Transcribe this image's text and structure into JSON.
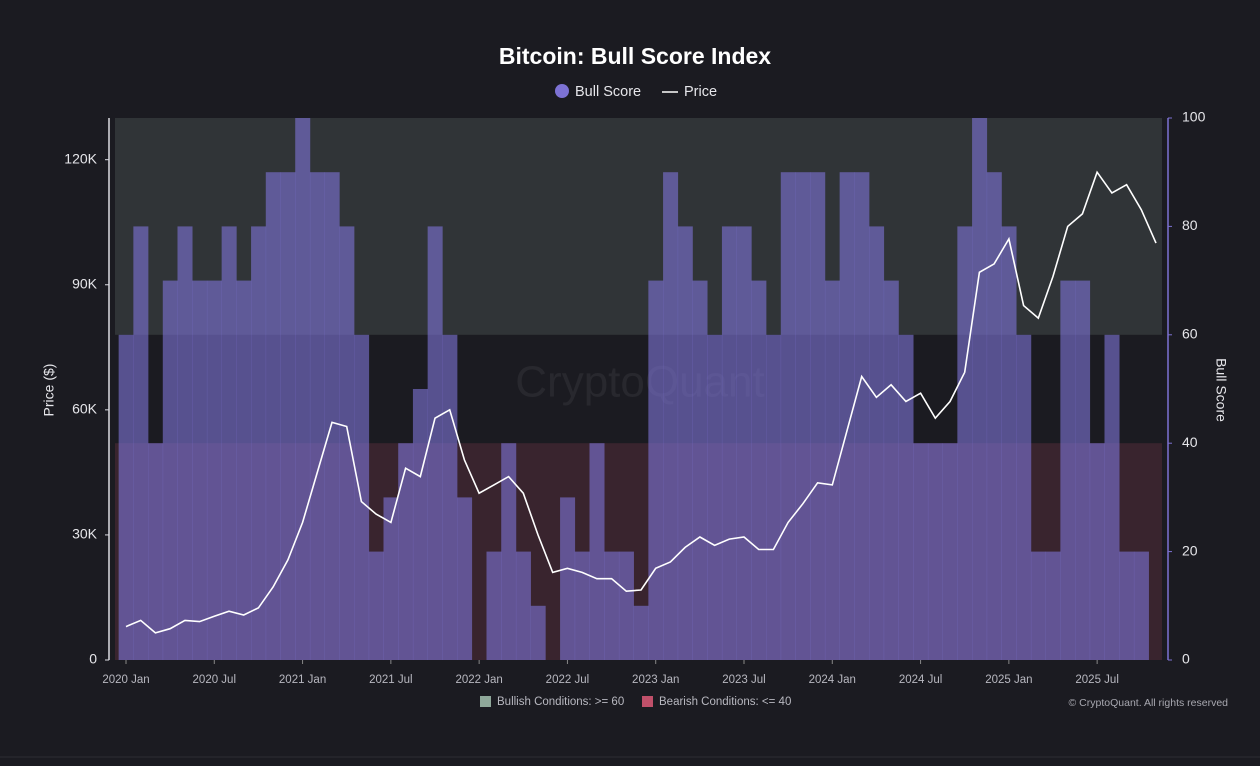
{
  "chart_data": {
    "type": "area-line",
    "title": "Bitcoin: Bull Score Index",
    "ylabel": "Price ($)",
    "y2label": "Bull Score",
    "watermark": "CryptoQuant",
    "credit": "© CryptoQuant. All rights reserved",
    "x": [
      "2020-01",
      "2020-02",
      "2020-03",
      "2020-04",
      "2020-05",
      "2020-06",
      "2020-07",
      "2020-08",
      "2020-09",
      "2020-10",
      "2020-11",
      "2020-12",
      "2021-01",
      "2021-02",
      "2021-03",
      "2021-04",
      "2021-05",
      "2021-06",
      "2021-07",
      "2021-08",
      "2021-09",
      "2021-10",
      "2021-11",
      "2021-12",
      "2022-01",
      "2022-02",
      "2022-03",
      "2022-04",
      "2022-05",
      "2022-06",
      "2022-07",
      "2022-08",
      "2022-09",
      "2022-10",
      "2022-11",
      "2022-12",
      "2023-01",
      "2023-02",
      "2023-03",
      "2023-04",
      "2023-05",
      "2023-06",
      "2023-07",
      "2023-08",
      "2023-09",
      "2023-10",
      "2023-11",
      "2023-12",
      "2024-01",
      "2024-02",
      "2024-03",
      "2024-04",
      "2024-05",
      "2024-06",
      "2024-07",
      "2024-08",
      "2024-09",
      "2024-10",
      "2024-11",
      "2024-12",
      "2025-01",
      "2025-02",
      "2025-03",
      "2025-04",
      "2025-05",
      "2025-06",
      "2025-07",
      "2025-08",
      "2025-09",
      "2025-10",
      "2025-11"
    ],
    "xticks": [
      {
        "value": "2020-01",
        "label": "2020 Jan"
      },
      {
        "value": "2020-07",
        "label": "2020 Jul"
      },
      {
        "value": "2021-01",
        "label": "2021 Jan"
      },
      {
        "value": "2021-07",
        "label": "2021 Jul"
      },
      {
        "value": "2022-01",
        "label": "2022 Jan"
      },
      {
        "value": "2022-07",
        "label": "2022 Jul"
      },
      {
        "value": "2023-01",
        "label": "2023 Jan"
      },
      {
        "value": "2023-07",
        "label": "2023 Jul"
      },
      {
        "value": "2024-01",
        "label": "2024 Jan"
      },
      {
        "value": "2024-07",
        "label": "2024 Jul"
      },
      {
        "value": "2025-01",
        "label": "2025 Jan"
      },
      {
        "value": "2025-07",
        "label": "2025 Jul"
      }
    ],
    "ylim": [
      0,
      130000
    ],
    "yticks": [
      0,
      {
        "value": 30000,
        "label": "30K"
      },
      {
        "value": 60000,
        "label": "60K"
      },
      {
        "value": 90000,
        "label": "90K"
      },
      {
        "value": 120000,
        "label": "120K"
      }
    ],
    "y2lim": [
      0,
      100
    ],
    "y2ticks": [
      0,
      20,
      40,
      60,
      80,
      100
    ],
    "bands": [
      {
        "label": "Bullish Conditions: >= 60",
        "from": 60,
        "to": 100,
        "color": "#8fa89a"
      },
      {
        "label": "Bearish Conditions: <= 40",
        "from": 0,
        "to": 40,
        "color": "#c0506a"
      }
    ],
    "series": [
      {
        "name": "Bull Score",
        "color": "#7d72d4",
        "axis": "y2",
        "values": [
          60,
          80,
          40,
          70,
          80,
          70,
          70,
          80,
          70,
          80,
          90,
          90,
          100,
          90,
          90,
          80,
          60,
          20,
          30,
          40,
          50,
          80,
          60,
          30,
          0,
          20,
          40,
          20,
          10,
          0,
          30,
          20,
          40,
          20,
          20,
          10,
          70,
          90,
          80,
          70,
          60,
          80,
          80,
          70,
          60,
          90,
          90,
          90,
          70,
          90,
          90,
          80,
          70,
          60,
          40,
          40,
          40,
          80,
          100,
          90,
          80,
          60,
          20,
          20,
          70,
          70,
          40,
          60,
          20,
          20,
          0
        ]
      },
      {
        "name": "Price",
        "color": "#ffffff",
        "values": [
          8000,
          9500,
          6500,
          7500,
          9500,
          9200,
          10500,
          11700,
          10800,
          12500,
          17500,
          24000,
          33000,
          45000,
          57000,
          56000,
          38000,
          35000,
          33000,
          46000,
          44000,
          58000,
          60000,
          48000,
          40000,
          42000,
          44000,
          40000,
          30000,
          21000,
          22000,
          21000,
          19500,
          19500,
          16500,
          16800,
          22000,
          23500,
          27000,
          29500,
          27500,
          29000,
          29500,
          26500,
          26500,
          33000,
          37500,
          42500,
          42000,
          55000,
          68000,
          63000,
          66000,
          62000,
          64000,
          58000,
          62000,
          69000,
          93000,
          95000,
          101000,
          85000,
          82000,
          92000,
          104000,
          107000,
          117000,
          112000,
          114000,
          108000,
          100000
        ]
      }
    ]
  }
}
